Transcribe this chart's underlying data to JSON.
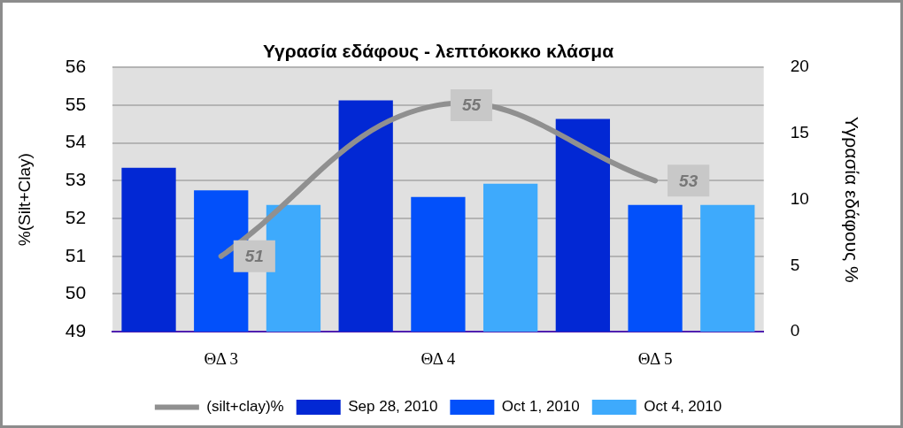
{
  "chart_data": {
    "type": "bar",
    "title": "Υγρασία εδάφους - λεπτόκοκκο κλάσμα",
    "ylabel": "%(Silt+Clay)",
    "y2label": "Υγρασία εδάφους %",
    "categories": [
      "ΘΔ 3",
      "ΘΔ 4",
      "ΘΔ 5"
    ],
    "series": [
      {
        "name": "Sep 28, 2010",
        "color": "#0228d4",
        "axis": "y2",
        "values": [
          12.4,
          17.5,
          16.1
        ]
      },
      {
        "name": "Oct 1, 2010",
        "color": "#0250fa",
        "axis": "y2",
        "values": [
          10.7,
          10.2,
          9.6
        ]
      },
      {
        "name": "Oct 4, 2010",
        "color": "#3eaafc",
        "axis": "y2",
        "values": [
          9.6,
          11.2,
          9.6
        ]
      },
      {
        "name": "(silt+clay)%",
        "type": "line",
        "color": "#909090",
        "marker": "none",
        "values": [
          51,
          55,
          53
        ],
        "value_labels": [
          "51",
          "55",
          "53"
        ]
      }
    ],
    "ylim": [
      49,
      56
    ],
    "yticks": [
      49,
      50,
      51,
      52,
      53,
      54,
      55,
      56
    ],
    "y2lim": [
      0,
      20
    ],
    "y2ticks": [
      0,
      5,
      10,
      15,
      20
    ],
    "grid": "y",
    "legend": "bottom"
  }
}
